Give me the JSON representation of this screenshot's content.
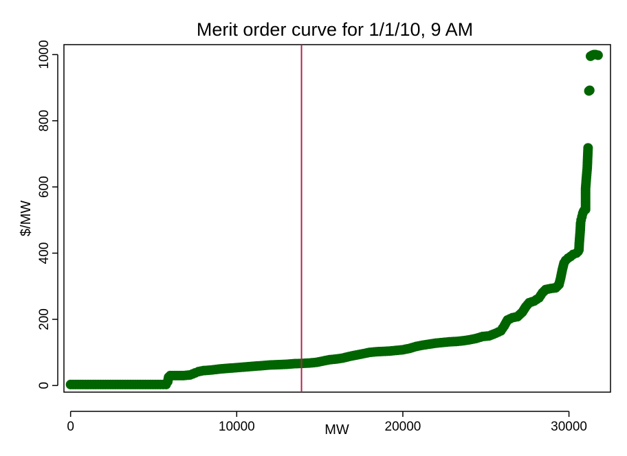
{
  "chart_data": {
    "type": "scatter",
    "title": "Merit order curve for 1/1/10, 9 AM",
    "xlabel": "MW",
    "ylabel": "$/MW",
    "xlim": [
      -400,
      32500
    ],
    "ylim": [
      -20,
      1030
    ],
    "xticks": [
      0,
      10000,
      20000,
      30000
    ],
    "yticks": [
      0,
      200,
      400,
      600,
      800,
      1000
    ],
    "grid": false,
    "legend": "none",
    "vline": {
      "x": 13900
    },
    "colors": {
      "points": "#006400",
      "vline": "#b0244c",
      "axis": "#000000"
    },
    "series": [
      {
        "points": [
          [
            0,
            3
          ],
          [
            600,
            3
          ],
          [
            1200,
            3
          ],
          [
            1800,
            3
          ],
          [
            2400,
            3
          ],
          [
            3000,
            3
          ],
          [
            3600,
            3
          ],
          [
            4200,
            3
          ],
          [
            4800,
            3
          ],
          [
            5400,
            3
          ],
          [
            5750,
            3
          ],
          [
            5850,
            12
          ],
          [
            5900,
            25
          ],
          [
            6000,
            30
          ],
          [
            6400,
            30
          ],
          [
            6800,
            30
          ],
          [
            7200,
            32
          ],
          [
            7500,
            38
          ],
          [
            7700,
            42
          ],
          [
            8000,
            45
          ],
          [
            8500,
            47
          ],
          [
            9000,
            50
          ],
          [
            9500,
            52
          ],
          [
            10000,
            54
          ],
          [
            10500,
            56
          ],
          [
            11000,
            58
          ],
          [
            11500,
            60
          ],
          [
            12000,
            62
          ],
          [
            12500,
            63
          ],
          [
            13000,
            64
          ],
          [
            13500,
            66
          ],
          [
            14000,
            67
          ],
          [
            14400,
            68
          ],
          [
            14800,
            70
          ],
          [
            15200,
            74
          ],
          [
            15600,
            78
          ],
          [
            16000,
            80
          ],
          [
            16400,
            83
          ],
          [
            16800,
            88
          ],
          [
            17200,
            92
          ],
          [
            17600,
            96
          ],
          [
            18000,
            100
          ],
          [
            18400,
            102
          ],
          [
            18800,
            103
          ],
          [
            19200,
            104
          ],
          [
            19600,
            106
          ],
          [
            20000,
            108
          ],
          [
            20400,
            112
          ],
          [
            20800,
            118
          ],
          [
            21200,
            122
          ],
          [
            21600,
            125
          ],
          [
            22000,
            128
          ],
          [
            22400,
            130
          ],
          [
            22800,
            132
          ],
          [
            23200,
            133
          ],
          [
            23600,
            135
          ],
          [
            24000,
            138
          ],
          [
            24400,
            142
          ],
          [
            24800,
            148
          ],
          [
            25200,
            150
          ],
          [
            25600,
            158
          ],
          [
            25900,
            165
          ],
          [
            26100,
            180
          ],
          [
            26300,
            198
          ],
          [
            26600,
            205
          ],
          [
            26900,
            208
          ],
          [
            27200,
            222
          ],
          [
            27400,
            238
          ],
          [
            27600,
            250
          ],
          [
            27900,
            255
          ],
          [
            28200,
            265
          ],
          [
            28400,
            280
          ],
          [
            28600,
            290
          ],
          [
            28900,
            293
          ],
          [
            29200,
            295
          ],
          [
            29400,
            305
          ],
          [
            29500,
            325
          ],
          [
            29600,
            350
          ],
          [
            29700,
            370
          ],
          [
            29800,
            378
          ],
          [
            29950,
            385
          ],
          [
            30100,
            390
          ],
          [
            30250,
            396
          ],
          [
            30450,
            400
          ],
          [
            30550,
            405
          ],
          [
            30600,
            410
          ],
          [
            30620,
            430
          ],
          [
            30650,
            450
          ],
          [
            30680,
            470
          ],
          [
            30700,
            490
          ],
          [
            30730,
            500
          ],
          [
            30780,
            510
          ],
          [
            30830,
            520
          ],
          [
            30880,
            526
          ],
          [
            30930,
            530
          ],
          [
            31000,
            532
          ],
          [
            31000,
            595
          ],
          [
            31050,
            628
          ],
          [
            31100,
            658
          ],
          [
            31150,
            718
          ],
          [
            31200,
            890
          ],
          [
            31250,
            892
          ],
          [
            31300,
            995
          ],
          [
            31400,
            998
          ],
          [
            31500,
            1000
          ],
          [
            31600,
            1000
          ],
          [
            31750,
            998
          ]
        ]
      }
    ]
  }
}
